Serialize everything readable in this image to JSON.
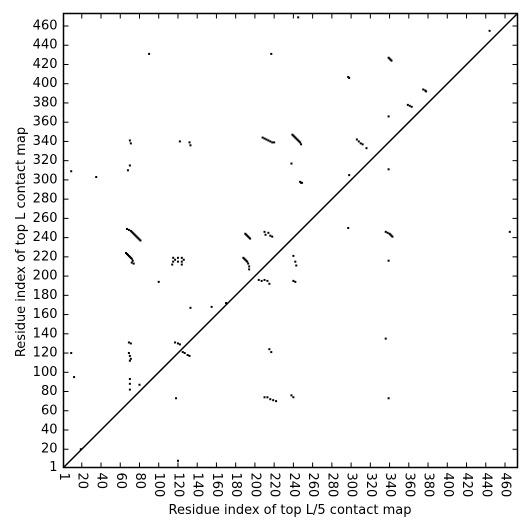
{
  "chart_data": {
    "type": "scatter",
    "x_label": "Residue index of top L/5 contact map",
    "y_label": "Residue index of top L contact map",
    "xlim": [
      1,
      473
    ],
    "ylim": [
      1,
      473
    ],
    "xticks": [
      1,
      20,
      40,
      60,
      80,
      100,
      120,
      140,
      160,
      180,
      200,
      220,
      240,
      260,
      280,
      300,
      320,
      340,
      360,
      380,
      400,
      420,
      440,
      460
    ],
    "yticks": [
      1,
      20,
      40,
      60,
      80,
      100,
      120,
      140,
      160,
      180,
      200,
      220,
      240,
      260,
      280,
      300,
      320,
      340,
      360,
      380,
      400,
      420,
      440,
      460
    ],
    "diagonal": {
      "x": [
        1,
        473
      ],
      "values": [
        1,
        473
      ],
      "color": "#000000"
    },
    "points": {
      "color": "#000000",
      "x": [
        67,
        69,
        71,
        72,
        73,
        74,
        75,
        76,
        77,
        78,
        79,
        80,
        81,
        66,
        67,
        68,
        69,
        70,
        71,
        72,
        73,
        72,
        74,
        239,
        240,
        241,
        242,
        243,
        244,
        245,
        246,
        247,
        248,
        208,
        210,
        212,
        214,
        216,
        218,
        220,
        247,
        248,
        249,
        190,
        191,
        192,
        193,
        194,
        195,
        188,
        189,
        190,
        191,
        192,
        193,
        194,
        194,
        336,
        338,
        340,
        341,
        342,
        343,
        339,
        340,
        341,
        342,
        297,
        298,
        306,
        308,
        310,
        312,
        316,
        359,
        361,
        363,
        375,
        377,
        378,
        115,
        115,
        117,
        120,
        120,
        124,
        124,
        126,
        114,
        124,
        70,
        71,
        69,
        71,
        69,
        70,
        71,
        70,
        70,
        70,
        70,
        117,
        120,
        122,
        125,
        127,
        130,
        132,
        210,
        211,
        214,
        216,
        218,
        204,
        207,
        210,
        213,
        215,
        240,
        242,
        243,
        240,
        242,
        210,
        213,
        216,
        219,
        222,
        238,
        240,
        215,
        217,
        9,
        9,
        35,
        90,
        100,
        120,
        118,
        133,
        155,
        170,
        217,
        245,
        238,
        298,
        297,
        339,
        339,
        339,
        339,
        336,
        444,
        465,
        12,
        80,
        19,
        68,
        70,
        132,
        133,
        122
      ],
      "values": [
        249,
        248,
        247,
        246,
        245,
        244,
        243,
        242,
        241,
        240,
        239,
        238,
        237,
        224,
        223,
        222,
        221,
        220,
        219,
        218,
        216,
        214,
        213,
        347,
        346,
        345,
        344,
        343,
        342,
        341,
        340,
        339,
        337,
        344,
        343,
        342,
        341,
        340,
        339,
        339,
        298,
        297,
        297,
        244,
        243,
        242,
        241,
        240,
        239,
        219,
        218,
        217,
        216,
        215,
        213,
        210,
        207,
        246,
        245,
        244,
        243,
        242,
        241,
        427,
        426,
        425,
        424,
        407,
        406,
        342,
        340,
        338,
        337,
        333,
        378,
        377,
        376,
        394,
        393,
        392,
        219,
        215,
        217,
        219,
        215,
        219,
        215,
        217,
        212,
        212,
        341,
        338,
        131,
        130,
        120,
        117,
        114,
        112,
        93,
        88,
        82,
        131,
        130,
        129,
        121,
        120,
        118,
        117,
        246,
        243,
        245,
        242,
        241,
        196,
        195,
        196,
        195,
        192,
        221,
        215,
        211,
        195,
        194,
        74,
        74,
        72,
        71,
        70,
        76,
        74,
        124,
        121,
        309,
        120,
        303,
        431,
        194,
        8,
        73,
        167,
        168,
        172,
        431,
        469,
        317,
        305,
        250,
        366,
        311,
        216,
        73,
        135,
        455,
        246,
        95,
        87,
        20,
        310,
        315,
        339,
        336,
        340
      ]
    }
  }
}
